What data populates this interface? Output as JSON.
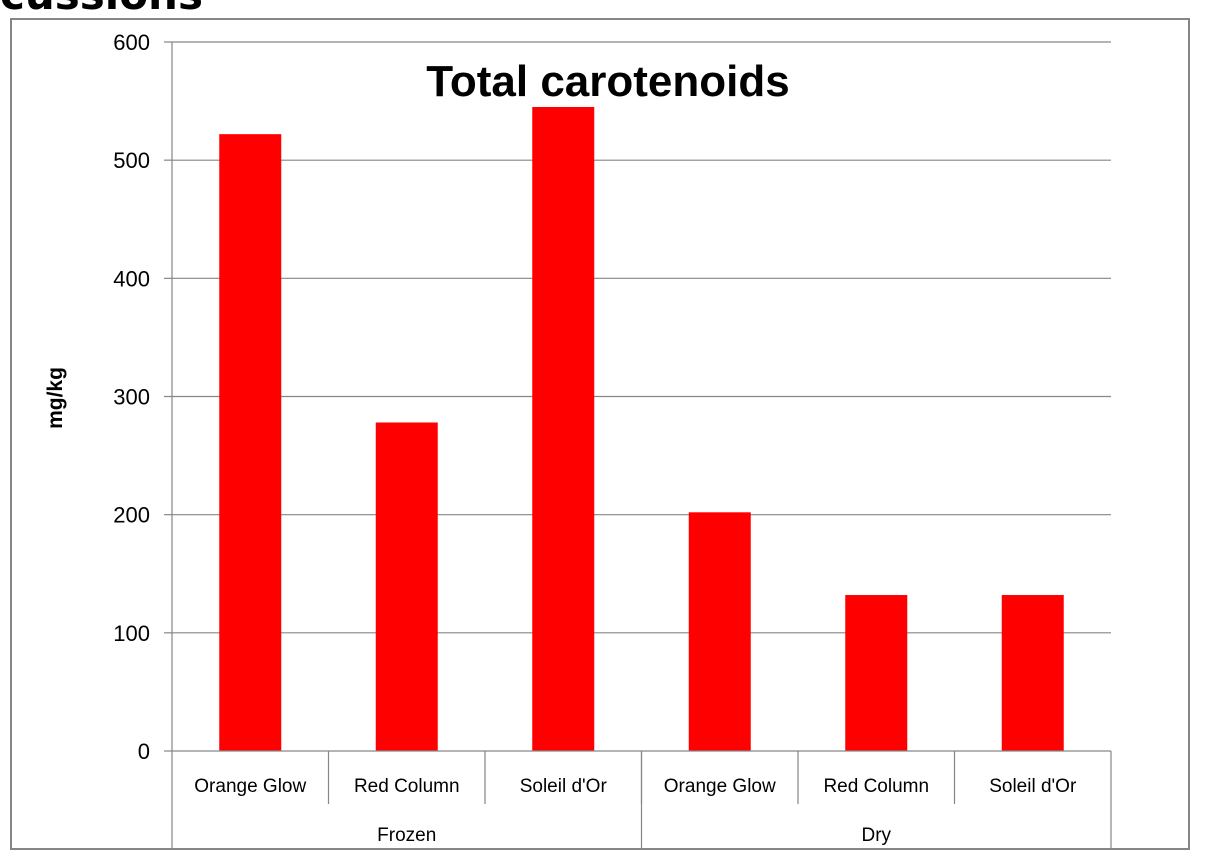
{
  "page": {
    "heading": "cussions"
  },
  "chart_data": {
    "type": "bar",
    "title": "Total carotenoids",
    "xlabel": "",
    "ylabel": "mg/kg",
    "ylim": [
      0,
      600
    ],
    "yticks": [
      0,
      100,
      200,
      300,
      400,
      500,
      600
    ],
    "grid": true,
    "legend": "none",
    "bar_color": "#ff0000",
    "categories": [
      "Orange Glow",
      "Red Column",
      "Soleil d'Or",
      "Orange Glow",
      "Red Column",
      "Soleil d'Or"
    ],
    "groups": [
      {
        "label": "Frozen",
        "count": 3
      },
      {
        "label": "Dry",
        "count": 3
      }
    ],
    "values": [
      522,
      278,
      545,
      202,
      132,
      132
    ]
  }
}
